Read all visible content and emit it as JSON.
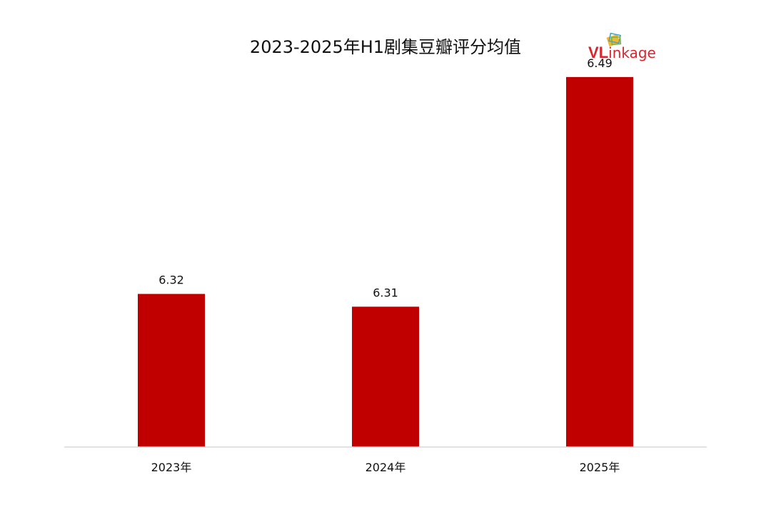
{
  "chart_data": {
    "type": "bar",
    "title": "2023-2025年H1剧集豆瓣评分均值",
    "categories": [
      "2023年",
      "2024年",
      "2025年"
    ],
    "values": [
      6.32,
      6.31,
      6.49
    ],
    "ylim": [
      6.2,
      6.5
    ],
    "grid": false,
    "legend": "none",
    "bar_color": "#C00000",
    "axis_color": "#D9D9D9"
  },
  "logo": {
    "text_v": "V",
    "text_l": "L",
    "text_rest": "inkage",
    "color_red": "#D7262E",
    "color_dark": "#333333"
  }
}
